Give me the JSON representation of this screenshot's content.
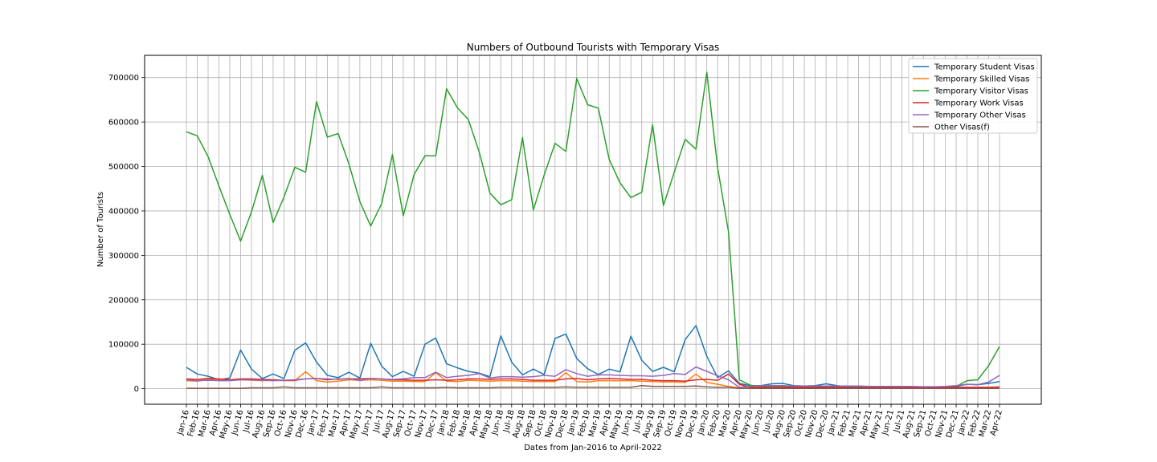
{
  "chart_data": {
    "type": "line",
    "title": "Numbers of Outbound Tourists with Temporary Visas",
    "xlabel": "Dates from Jan-2016 to April-2022",
    "ylabel": "Number of Tourists",
    "ylim": [
      -35000,
      750000
    ],
    "yticks": [
      0,
      100000,
      200000,
      300000,
      400000,
      500000,
      600000,
      700000
    ],
    "grid": true,
    "legend_position": "top-right",
    "categories": [
      "Jan-16",
      "Feb-16",
      "Mar-16",
      "Apr-16",
      "May-16",
      "Jun-16",
      "Jul-16",
      "Aug-16",
      "Sep-16",
      "Oct-16",
      "Nov-16",
      "Dec-16",
      "Jan-17",
      "Feb-17",
      "Mar-17",
      "Apr-17",
      "May-17",
      "Jun-17",
      "Jul-17",
      "Aug-17",
      "Sep-17",
      "Oct-17",
      "Nov-17",
      "Dec-17",
      "Jan-18",
      "Feb-18",
      "Mar-18",
      "Apr-18",
      "May-18",
      "Jun-18",
      "Jul-18",
      "Aug-18",
      "Sep-18",
      "Oct-18",
      "Nov-18",
      "Dec-18",
      "Jan-19",
      "Feb-19",
      "Mar-19",
      "Apr-19",
      "May-19",
      "Jun-19",
      "Jul-19",
      "Aug-19",
      "Sep-19",
      "Oct-19",
      "Nov-19",
      "Dec-19",
      "Jan-20",
      "Feb-20",
      "Mar-20",
      "Apr-20",
      "May-20",
      "Jun-20",
      "Jul-20",
      "Aug-20",
      "Sep-20",
      "Oct-20",
      "Nov-20",
      "Dec-20",
      "Jan-21",
      "Feb-21",
      "Mar-21",
      "Apr-21",
      "May-21",
      "Jun-21",
      "Jul-21",
      "Aug-21",
      "Sep-21",
      "Oct-21",
      "Nov-21",
      "Dec-21",
      "Jan-22",
      "Feb-22",
      "Mar-22",
      "Apr-22"
    ],
    "series": [
      {
        "name": "Temporary Student Visas",
        "color": "#1f77b4",
        "values": [
          48000,
          33000,
          28000,
          20000,
          24000,
          87000,
          44000,
          23000,
          33000,
          23000,
          86000,
          103000,
          60000,
          30000,
          25000,
          37000,
          24000,
          102000,
          51000,
          27000,
          39000,
          28000,
          100000,
          114000,
          56000,
          47000,
          39000,
          35000,
          27000,
          119000,
          60000,
          31000,
          44000,
          32000,
          113000,
          123000,
          68000,
          45000,
          32000,
          44000,
          38000,
          118000,
          64000,
          39000,
          48000,
          38000,
          110000,
          142000,
          73000,
          25000,
          40000,
          12000,
          7000,
          7000,
          11000,
          12000,
          7000,
          6000,
          7000,
          11000,
          7000,
          4000,
          4000,
          4000,
          3000,
          3000,
          3000,
          3000,
          2500,
          2000,
          3000,
          5000,
          10000,
          9000,
          12000,
          16000
        ]
      },
      {
        "name": "Temporary Skilled Visas",
        "color": "#ff7f0e",
        "values": [
          18000,
          17000,
          21000,
          21000,
          19000,
          20000,
          19000,
          18000,
          19000,
          18000,
          18000,
          38000,
          18000,
          15000,
          17000,
          20000,
          19000,
          20000,
          19000,
          17000,
          17000,
          16000,
          16000,
          36000,
          17000,
          16000,
          19000,
          18000,
          17000,
          18000,
          18000,
          17000,
          16000,
          16000,
          16000,
          36000,
          16000,
          15000,
          18000,
          18000,
          18000,
          18000,
          17000,
          16000,
          15000,
          15000,
          14000,
          33000,
          14000,
          10000,
          5000,
          2000,
          2000,
          2000,
          2000,
          2000,
          2000,
          2000,
          1500,
          1500,
          1000,
          1000,
          1000,
          1000,
          1000,
          1000,
          1000,
          1000,
          1000,
          1000,
          1000,
          2000,
          2000,
          2000,
          2000,
          2000
        ]
      },
      {
        "name": "Temporary Visitor Visas",
        "color": "#2ca02c",
        "values": [
          578000,
          569000,
          522000,
          456000,
          392000,
          332000,
          398000,
          480000,
          374000,
          431000,
          498000,
          487000,
          646000,
          566000,
          574000,
          505000,
          421000,
          366000,
          416000,
          527000,
          389000,
          482000,
          524000,
          524000,
          675000,
          632000,
          606000,
          533000,
          440000,
          414000,
          425000,
          565000,
          402000,
          481000,
          552000,
          534000,
          698000,
          639000,
          631000,
          516000,
          463000,
          430000,
          442000,
          594000,
          412000,
          487000,
          561000,
          539000,
          712000,
          497000,
          353000,
          20000,
          8000,
          5000,
          6000,
          5000,
          4000,
          4000,
          4000,
          5000,
          4000,
          3000,
          3000,
          3000,
          3000,
          3000,
          3000,
          3000,
          2500,
          2500,
          3000,
          5000,
          18000,
          20000,
          52000,
          95000
        ]
      },
      {
        "name": "Temporary Work Visas",
        "color": "#d62728",
        "values": [
          22000,
          21000,
          23000,
          22000,
          20000,
          22000,
          22000,
          21000,
          20000,
          19000,
          19000,
          22000,
          23000,
          20000,
          22000,
          22000,
          22000,
          23000,
          22000,
          20000,
          20000,
          19000,
          19000,
          20000,
          19000,
          20000,
          22000,
          22000,
          21000,
          22000,
          22000,
          21000,
          19000,
          19000,
          19000,
          22000,
          23000,
          20000,
          22000,
          23000,
          22000,
          21000,
          21000,
          19000,
          18000,
          18000,
          17000,
          20000,
          21000,
          19000,
          33000,
          10000,
          3000,
          3000,
          3000,
          3000,
          3000,
          3000,
          3000,
          3000,
          3000,
          2500,
          2500,
          2500,
          2500,
          2500,
          2500,
          2500,
          2500,
          2500,
          2500,
          3000,
          3000,
          3000,
          3000,
          4000
        ]
      },
      {
        "name": "Temporary Other Visas",
        "color": "#9467bd",
        "values": [
          20000,
          18000,
          19000,
          18000,
          18000,
          20000,
          20000,
          19000,
          18000,
          19000,
          20000,
          22000,
          23000,
          22000,
          21000,
          23000,
          18000,
          23000,
          22000,
          21000,
          22000,
          25000,
          25000,
          37000,
          25000,
          28000,
          30000,
          34000,
          24000,
          27000,
          27000,
          26000,
          27000,
          30000,
          28000,
          43000,
          34000,
          28000,
          31000,
          31000,
          30000,
          29000,
          29000,
          28000,
          30000,
          34000,
          32000,
          49000,
          39000,
          29000,
          20000,
          3000,
          5000,
          7000,
          7000,
          7000,
          6000,
          6000,
          6000,
          6000,
          6000,
          6000,
          6000,
          5000,
          5000,
          5000,
          5000,
          5000,
          4500,
          4500,
          5000,
          7000,
          10000,
          9000,
          15000,
          30000
        ]
      },
      {
        "name": "Other Visas(f)",
        "color": "#8c564b",
        "values": [
          1000,
          1000,
          1000,
          1000,
          1000,
          1000,
          2000,
          2000,
          2000,
          4000,
          2000,
          2000,
          2000,
          2000,
          2000,
          2000,
          2000,
          2000,
          4000,
          2000,
          2000,
          2000,
          2000,
          2000,
          3000,
          2000,
          2000,
          2000,
          2000,
          3000,
          3000,
          3000,
          3000,
          3000,
          3000,
          4000,
          3000,
          3000,
          3000,
          3000,
          3000,
          3000,
          7000,
          5000,
          5000,
          5000,
          5000,
          6000,
          4000,
          3000,
          3000,
          1000,
          500,
          500,
          500,
          500,
          500,
          500,
          500,
          500,
          500,
          500,
          500,
          500,
          500,
          500,
          500,
          500,
          500,
          500,
          500,
          500,
          500,
          500,
          500,
          800
        ]
      }
    ]
  }
}
